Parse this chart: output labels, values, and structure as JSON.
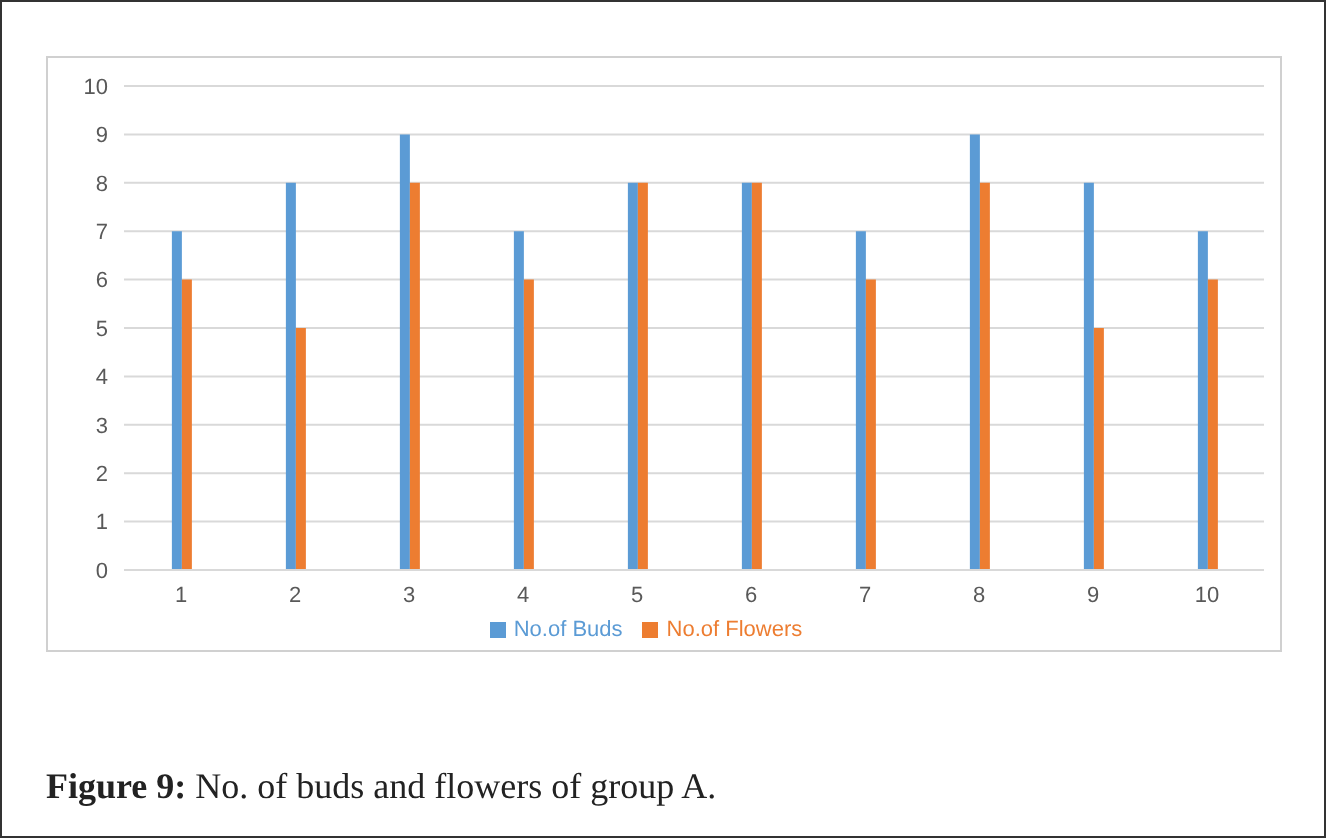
{
  "chart_data": {
    "type": "bar",
    "categories": [
      "1",
      "2",
      "3",
      "4",
      "5",
      "6",
      "7",
      "8",
      "9",
      "10"
    ],
    "series": [
      {
        "name": "No.of Buds",
        "color": "#5b9bd5",
        "values": [
          7,
          8,
          9,
          7,
          8,
          8,
          7,
          9,
          8,
          7
        ]
      },
      {
        "name": "No.of Flowers",
        "color": "#ed7d31",
        "values": [
          6,
          5,
          8,
          6,
          8,
          8,
          6,
          8,
          5,
          6
        ]
      }
    ],
    "ylim": [
      0,
      10
    ],
    "yticks": [
      0,
      1,
      2,
      3,
      4,
      5,
      6,
      7,
      8,
      9,
      10
    ],
    "grid": "y",
    "legend": "bottom",
    "annotations": [
      "Figure 9: No. of buds and flowers of group A."
    ]
  }
}
